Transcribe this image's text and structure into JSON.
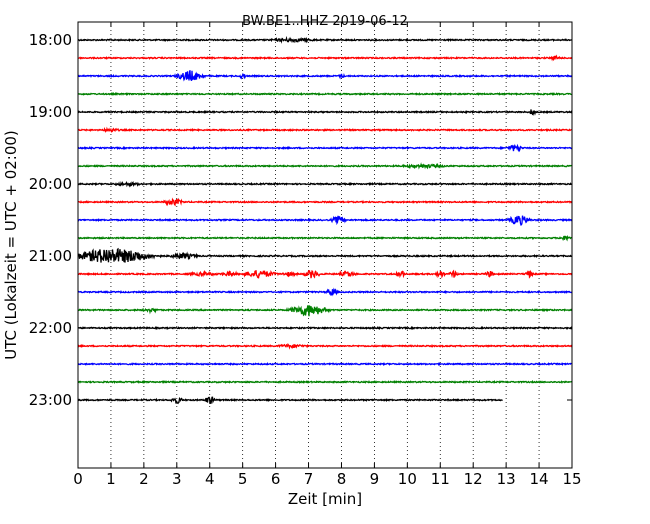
{
  "chart_data": {
    "type": "line",
    "title": "BW.BE1..HHZ 2019-06-12",
    "xlabel": "Zeit  [min]",
    "ylabel": "UTC (Lokalzeit = UTC + 02:00)",
    "xlim": [
      0,
      15
    ],
    "x_ticks": [
      "0",
      "1",
      "2",
      "3",
      "4",
      "5",
      "6",
      "7",
      "8",
      "9",
      "10",
      "11",
      "12",
      "13",
      "14",
      "15"
    ],
    "y_ticks": [
      "18:00",
      "19:00",
      "20:00",
      "21:00",
      "22:00",
      "23:00"
    ],
    "grid": "vertical dotted",
    "trace_colors": [
      "#000000",
      "#ff0000",
      "#0000ff",
      "#008000"
    ],
    "rows": [
      {
        "start": "18:00",
        "color": "#000000",
        "end_min": 15,
        "events": [
          [
            6.5,
            1.5,
            0.8
          ]
        ]
      },
      {
        "start": "18:15",
        "color": "#ff0000",
        "end_min": 15,
        "events": [
          [
            14.5,
            1.5,
            0.2
          ]
        ]
      },
      {
        "start": "18:30",
        "color": "#0000ff",
        "end_min": 15,
        "events": [
          [
            3.4,
            5.5,
            0.5
          ],
          [
            5.0,
            3,
            0.1
          ],
          [
            8.0,
            2,
            0.1
          ]
        ]
      },
      {
        "start": "18:45",
        "color": "#008000",
        "end_min": 15,
        "events": []
      },
      {
        "start": "19:00",
        "color": "#000000",
        "end_min": 15,
        "events": [
          [
            13.8,
            4,
            0.1
          ]
        ]
      },
      {
        "start": "19:15",
        "color": "#ff0000",
        "end_min": 15,
        "events": [
          [
            1.0,
            1.5,
            0.3
          ]
        ]
      },
      {
        "start": "19:30",
        "color": "#0000ff",
        "end_min": 15,
        "events": [
          [
            13.2,
            3,
            0.2
          ],
          [
            13.4,
            2.5,
            0.1
          ]
        ]
      },
      {
        "start": "19:45",
        "color": "#008000",
        "end_min": 15,
        "events": [
          [
            10.5,
            1.5,
            0.8
          ]
        ]
      },
      {
        "start": "20:00",
        "color": "#000000",
        "end_min": 15,
        "events": [
          [
            1.5,
            1.2,
            0.5
          ]
        ]
      },
      {
        "start": "20:15",
        "color": "#ff0000",
        "end_min": 15,
        "events": [
          [
            2.9,
            3,
            0.35
          ]
        ]
      },
      {
        "start": "20:30",
        "color": "#0000ff",
        "end_min": 15,
        "events": [
          [
            7.9,
            4,
            0.25
          ],
          [
            13.4,
            5,
            0.4
          ]
        ]
      },
      {
        "start": "20:45",
        "color": "#008000",
        "end_min": 15,
        "events": [
          [
            14.8,
            2,
            0.2
          ]
        ]
      },
      {
        "start": "21:00",
        "color": "#000000",
        "end_min": 15,
        "events": [
          [
            0.9,
            8,
            1.2
          ],
          [
            1.8,
            3,
            0.8
          ],
          [
            3.2,
            2.5,
            0.5
          ]
        ]
      },
      {
        "start": "21:15",
        "color": "#ff0000",
        "end_min": 15,
        "events": [
          [
            5.5,
            4,
            0.6
          ],
          [
            7.1,
            4,
            0.3
          ],
          [
            9.8,
            4,
            0.15
          ],
          [
            11.0,
            4,
            0.15
          ],
          [
            11.4,
            3.5,
            0.15
          ],
          [
            12.5,
            3,
            0.15
          ],
          [
            13.7,
            3,
            0.15
          ],
          [
            8.2,
            2.5,
            0.3
          ],
          [
            4.6,
            2,
            0.3
          ],
          [
            3.8,
            1.5,
            0.5
          ],
          [
            6.4,
            1.5,
            0.3
          ]
        ]
      },
      {
        "start": "21:30",
        "color": "#0000ff",
        "end_min": 15,
        "events": [
          [
            7.7,
            4,
            0.2
          ]
        ]
      },
      {
        "start": "21:45",
        "color": "#008000",
        "end_min": 15,
        "events": [
          [
            7.0,
            6,
            0.7
          ],
          [
            2.2,
            1.5,
            0.3
          ]
        ]
      },
      {
        "start": "22:00",
        "color": "#000000",
        "end_min": 15,
        "events": []
      },
      {
        "start": "22:15",
        "color": "#ff0000",
        "end_min": 15,
        "events": [
          [
            6.5,
            1.5,
            0.5
          ]
        ]
      },
      {
        "start": "22:30",
        "color": "#0000ff",
        "end_min": 15,
        "events": []
      },
      {
        "start": "22:45",
        "color": "#008000",
        "end_min": 15,
        "events": []
      },
      {
        "start": "23:00",
        "color": "#000000",
        "end_min": 12.9,
        "events": [
          [
            3.0,
            3.5,
            0.2
          ],
          [
            4.0,
            4,
            0.2
          ]
        ]
      }
    ]
  }
}
